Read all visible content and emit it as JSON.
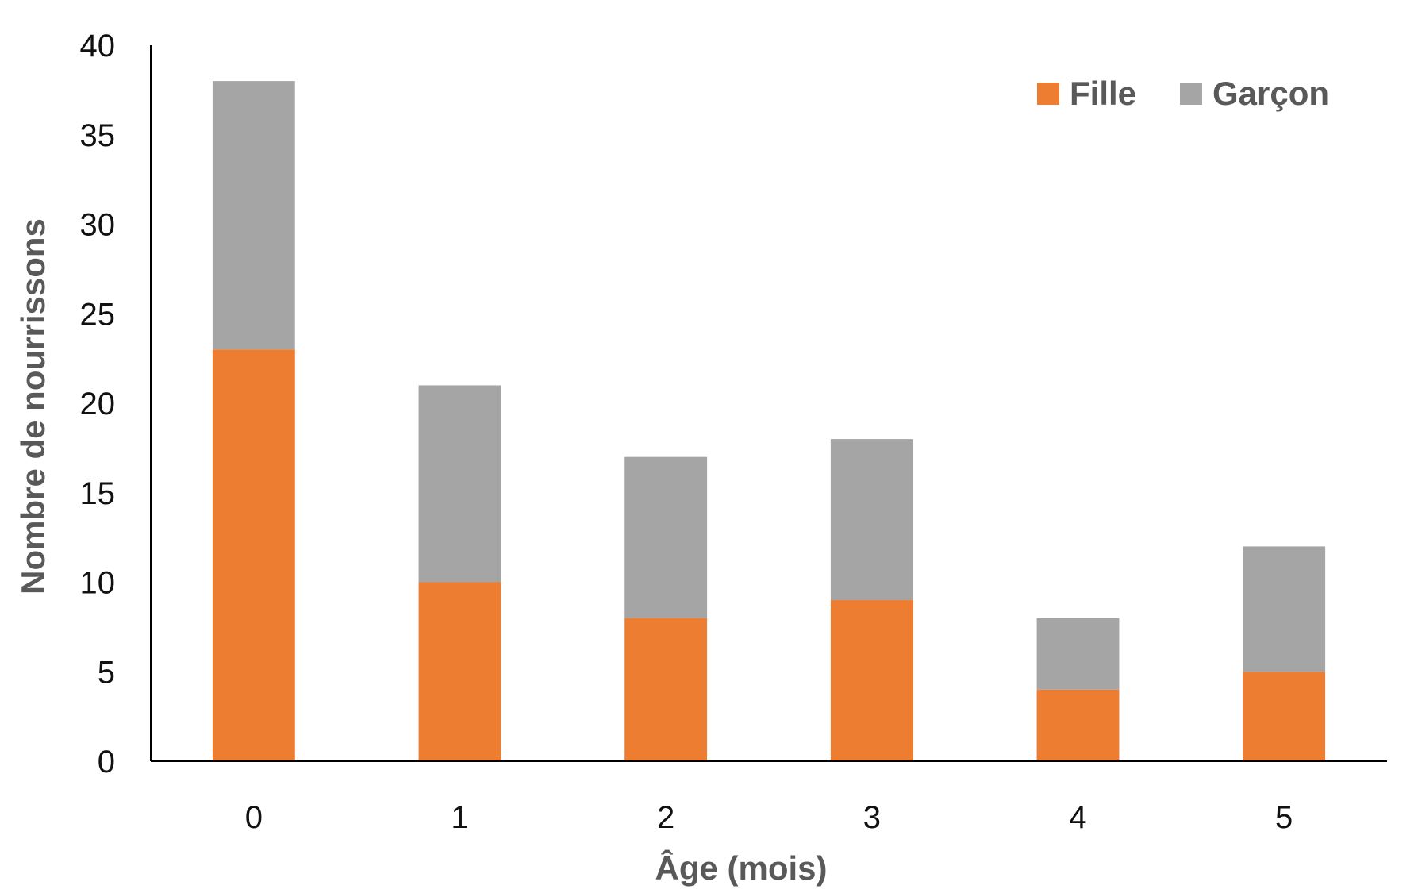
{
  "chart_data": {
    "type": "bar",
    "stacked": true,
    "title": "",
    "xlabel": "Âge (mois)",
    "ylabel": "Nombre de nourrissons",
    "categories": [
      "0",
      "1",
      "2",
      "3",
      "4",
      "5"
    ],
    "series": [
      {
        "name": "Fille",
        "values": [
          23,
          10,
          8,
          9,
          4,
          5
        ],
        "color": "#ED7D31"
      },
      {
        "name": "Garçon",
        "values": [
          15,
          11,
          9,
          9,
          4,
          7
        ],
        "color": "#A5A5A5"
      }
    ],
    "ylim": [
      0,
      40
    ],
    "yticks": [
      "0",
      "5",
      "10",
      "15",
      "20",
      "25",
      "30",
      "35",
      "40"
    ],
    "grid": false,
    "legend_position": "top-right"
  }
}
